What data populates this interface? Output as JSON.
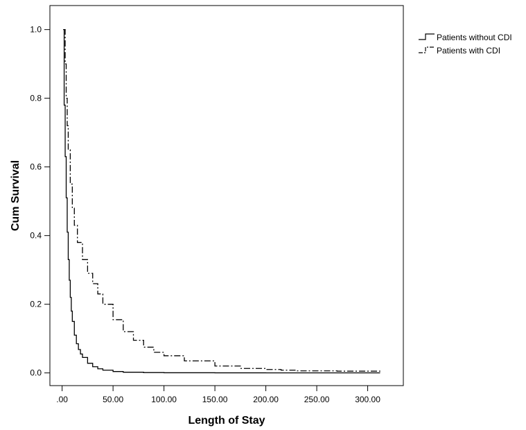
{
  "chart_data": {
    "type": "line",
    "title": "",
    "xlabel": "Length of Stay",
    "ylabel": "Cum Survival",
    "xlim": [
      -12,
      335
    ],
    "ylim": [
      -0.037,
      1.07
    ],
    "x_ticks": [
      0,
      50,
      100,
      150,
      200,
      250,
      300
    ],
    "x_tick_labels": [
      ".00",
      "50.00",
      "100.00",
      "150.00",
      "200.00",
      "250.00",
      "300.00"
    ],
    "y_ticks": [
      0,
      0.2,
      0.4,
      0.6,
      0.8,
      1.0
    ],
    "y_tick_labels": [
      "0.0",
      "0.2",
      "0.4",
      "0.6",
      "0.8",
      "1.0"
    ],
    "grid": false,
    "legend_position": "top-right, outside plot",
    "series": [
      {
        "name": "Patients without CDI",
        "style": "solid",
        "color": "#000000",
        "x": [
          1,
          2,
          3,
          4,
          5,
          6,
          7,
          8,
          9,
          10,
          12,
          14,
          16,
          18,
          20,
          25,
          30,
          35,
          40,
          50,
          60,
          80,
          100,
          150,
          200,
          250,
          312
        ],
        "y": [
          1.0,
          0.78,
          0.63,
          0.51,
          0.41,
          0.33,
          0.27,
          0.22,
          0.18,
          0.15,
          0.11,
          0.085,
          0.068,
          0.055,
          0.045,
          0.028,
          0.018,
          0.012,
          0.008,
          0.004,
          0.002,
          0.001,
          0.0005,
          0.0002,
          0.0001,
          0.0001,
          0.0
        ]
      },
      {
        "name": "Patients with CDI",
        "style": "dash-dot",
        "color": "#000000",
        "x": [
          2,
          3,
          4,
          5,
          6,
          8,
          10,
          12,
          15,
          20,
          25,
          30,
          35,
          40,
          50,
          60,
          70,
          80,
          90,
          100,
          120,
          150,
          175,
          200,
          215,
          230,
          270,
          312
        ],
        "y": [
          1.0,
          0.9,
          0.8,
          0.72,
          0.65,
          0.55,
          0.48,
          0.43,
          0.38,
          0.33,
          0.29,
          0.26,
          0.23,
          0.2,
          0.155,
          0.12,
          0.095,
          0.075,
          0.06,
          0.05,
          0.035,
          0.02,
          0.013,
          0.01,
          0.008,
          0.006,
          0.005,
          0.004
        ]
      }
    ]
  }
}
